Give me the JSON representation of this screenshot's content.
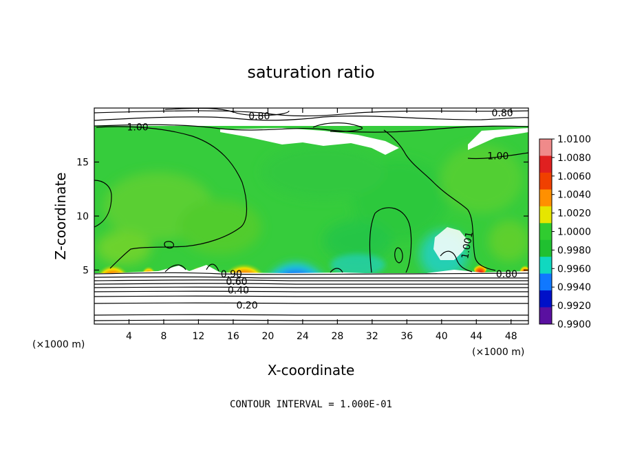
{
  "chart_data": {
    "type": "heatmap",
    "title": "saturation ratio",
    "xlabel": "X-coordinate",
    "ylabel": "Z-coordinate",
    "x_unit": "(×1000 m)",
    "x_unit_right": "(×1000 m)",
    "xlim": [
      0,
      50
    ],
    "ylim": [
      0,
      20
    ],
    "x_ticks": [
      4,
      8,
      12,
      16,
      20,
      24,
      28,
      32,
      36,
      40,
      44,
      48
    ],
    "y_ticks": [
      5,
      10,
      15
    ],
    "footer": "CONTOUR INTERVAL = 1.000E-01",
    "colorbar": {
      "labels": [
        "1.0100",
        "1.0080",
        "1.0060",
        "1.0040",
        "1.0020",
        "1.0000",
        "0.9980",
        "0.9960",
        "0.9940",
        "0.9920",
        "0.9900"
      ],
      "colors": [
        "#f08a8a",
        "#e02020",
        "#f04000",
        "#ff9000",
        "#e6e600",
        "#30cc30",
        "#20c030",
        "#10d8c0",
        "#1078ff",
        "#0010c8",
        "#5a10a0"
      ]
    },
    "contour_labels": [
      {
        "text": "0.80",
        "x": 19.0,
        "z": 19.2
      },
      {
        "text": "0.80",
        "x": 47.0,
        "z": 19.5
      },
      {
        "text": "1.00",
        "x": 5.0,
        "z": 18.2
      },
      {
        "text": "1.00",
        "x": 46.5,
        "z": 15.5
      },
      {
        "text": "1.001",
        "x": 43.3,
        "z": 7.5
      },
      {
        "text": "0.90",
        "x": 15.8,
        "z": 4.6
      },
      {
        "text": "0.60",
        "x": 16.4,
        "z": 3.9
      },
      {
        "text": "0.40",
        "x": 16.6,
        "z": 3.1
      },
      {
        "text": "0.20",
        "x": 17.6,
        "z": 1.7
      },
      {
        "text": "0.80",
        "x": 47.5,
        "z": 4.6
      }
    ]
  }
}
